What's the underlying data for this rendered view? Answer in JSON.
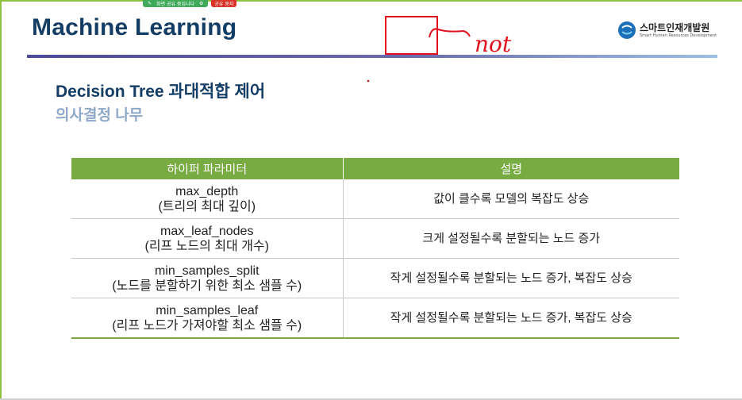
{
  "window": {
    "share_text": "화면 공유 중입니다",
    "stop_text": "공유 중지"
  },
  "slide": {
    "title": "Machine Learning",
    "logo_ko": "스마트인재개발원",
    "logo_en": "Smart Human Resources Development",
    "annotation": "not",
    "heading": "Decision Tree 과대적합 제어",
    "subheading": "의사결정 나무"
  },
  "table": {
    "headers": [
      "하이퍼 파라미터",
      "설명"
    ],
    "rows": [
      {
        "param": "max_depth",
        "note": "(트리의 최대 깊이)",
        "desc": "값이 클수록 모델의 복잡도 상승"
      },
      {
        "param": "max_leaf_nodes",
        "note": "(리프 노드의 최대 개수)",
        "desc": "크게 설정될수록 분할되는 노드 증가"
      },
      {
        "param": "min_samples_split",
        "note": "(노드를 분할하기 위한 최소 샘플 수)",
        "desc": "작게 설정될수록 분할되는 노드 증가, 복잡도 상승"
      },
      {
        "param": "min_samples_leaf",
        "note": "(리프 노드가 가져야할 최소 샘플 수)",
        "desc": "작게 설정될수록 분할되는 노드 증가, 복잡도 상승"
      }
    ]
  },
  "colors": {
    "title": "#143d66",
    "subheading": "#8fa8c8",
    "table_header": "#78ac43",
    "annotation": "#e0101e"
  },
  "icons": [
    "pin-icon",
    "gear-icon",
    "logo-icon"
  ]
}
